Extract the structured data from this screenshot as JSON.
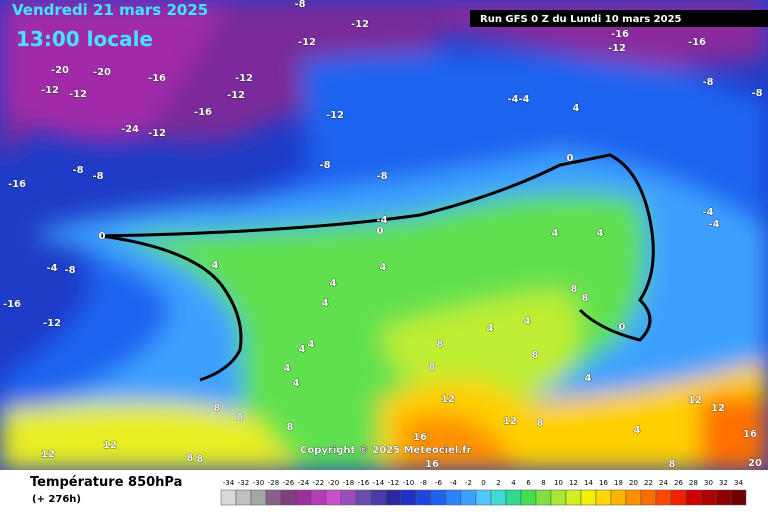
{
  "header": {
    "valid_date": "Vendredi 21 mars 2025",
    "local_time": "13:00 locale",
    "run": "Run GFS 0 Z du Lundi 10 mars 2025"
  },
  "copyright": "Copyright © 2025 Meteociel.fr",
  "footer": {
    "title": "Température 850hPa",
    "lead": "(+ 276h)"
  },
  "contour_labels": [
    "-8",
    "-12",
    "-12",
    "-16",
    "-12",
    "-16",
    "-20",
    "-20",
    "-16",
    "-12",
    "-12",
    "-12",
    "-12",
    "-16",
    "-12",
    "-4",
    "-4",
    "4",
    "-8",
    "-8",
    "-24",
    "-12",
    "-8",
    "-8",
    "-8",
    "-8",
    "-16",
    "0",
    "-4",
    "0",
    "0",
    "4",
    "4",
    "-4",
    "-4",
    "-4",
    "-8",
    "4",
    "4",
    "-16",
    "4",
    "-12",
    "4",
    "8",
    "8",
    "4",
    "4",
    "4",
    "4",
    "8",
    "4",
    "4",
    "8",
    "8",
    "0",
    "4",
    "8",
    "8",
    "12",
    "8",
    "12",
    "8",
    "12",
    "12",
    "12",
    "12",
    "4",
    "16",
    "16",
    "16",
    "8",
    "20",
    "8",
    "8"
  ],
  "legend": {
    "values": [
      -34,
      -32,
      -30,
      -28,
      -26,
      -24,
      -22,
      -20,
      -18,
      -16,
      -14,
      -12,
      -10,
      -8,
      -6,
      -4,
      -2,
      0,
      2,
      4,
      6,
      8,
      10,
      12,
      14,
      16,
      18,
      20,
      22,
      24,
      26,
      28,
      30,
      32,
      34
    ],
    "colors": [
      "#d9d9d9",
      "#bfbfbf",
      "#a6a6a6",
      "#8a5f8a",
      "#7d3f7d",
      "#9b2f9b",
      "#b43cb4",
      "#c850c8",
      "#9b4fbd",
      "#6a4cb0",
      "#4b3aa8",
      "#2a2aa0",
      "#1e32c8",
      "#1e46dc",
      "#1e64f0",
      "#2884f8",
      "#3ca0ff",
      "#50c8ff",
      "#3cdcd2",
      "#30d890",
      "#40e050",
      "#80e040",
      "#a8e830",
      "#d0f020",
      "#f0f000",
      "#ffd800",
      "#ffb400",
      "#ff9000",
      "#ff6c00",
      "#ff4800",
      "#f02000",
      "#d00000",
      "#b00000",
      "#900000",
      "#700000"
    ]
  }
}
